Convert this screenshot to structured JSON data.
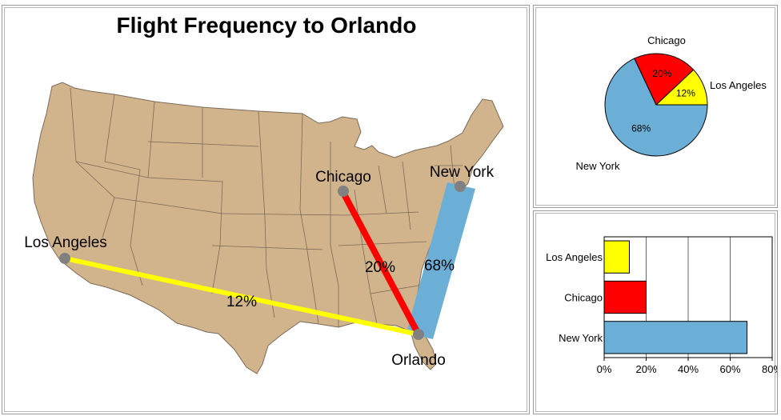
{
  "map": {
    "title": "Flight Frequency to Orlando",
    "land_color": "#D2B48C",
    "border_color": "#7A6A5A",
    "destination": {
      "label": "Orlando"
    }
  },
  "chart_data": [
    {
      "type": "pie",
      "labels": [
        "New York",
        "Chicago",
        "Los Angeles"
      ],
      "values": [
        68,
        20,
        12
      ],
      "value_labels": [
        "68%",
        "20%",
        "12%"
      ],
      "colors": [
        "#6BAED6",
        "#FF0000",
        "#FFFF00"
      ]
    },
    {
      "type": "bar",
      "orientation": "horizontal",
      "categories": [
        "New York",
        "Chicago",
        "Los Angeles"
      ],
      "values": [
        68,
        20,
        12
      ],
      "colors": [
        "#6BAED6",
        "#FF0000",
        "#FFFF00"
      ],
      "xlim": [
        0,
        80
      ],
      "xticks": [
        "0%",
        "20%",
        "40%",
        "60%",
        "80%"
      ],
      "grid": true
    }
  ],
  "routes": [
    {
      "origin": "New York",
      "percent_label": "68%",
      "color": "#6BAED6"
    },
    {
      "origin": "Chicago",
      "percent_label": "20%",
      "color": "#FF0000"
    },
    {
      "origin": "Los Angeles",
      "percent_label": "12%",
      "color": "#FFFF00"
    }
  ]
}
